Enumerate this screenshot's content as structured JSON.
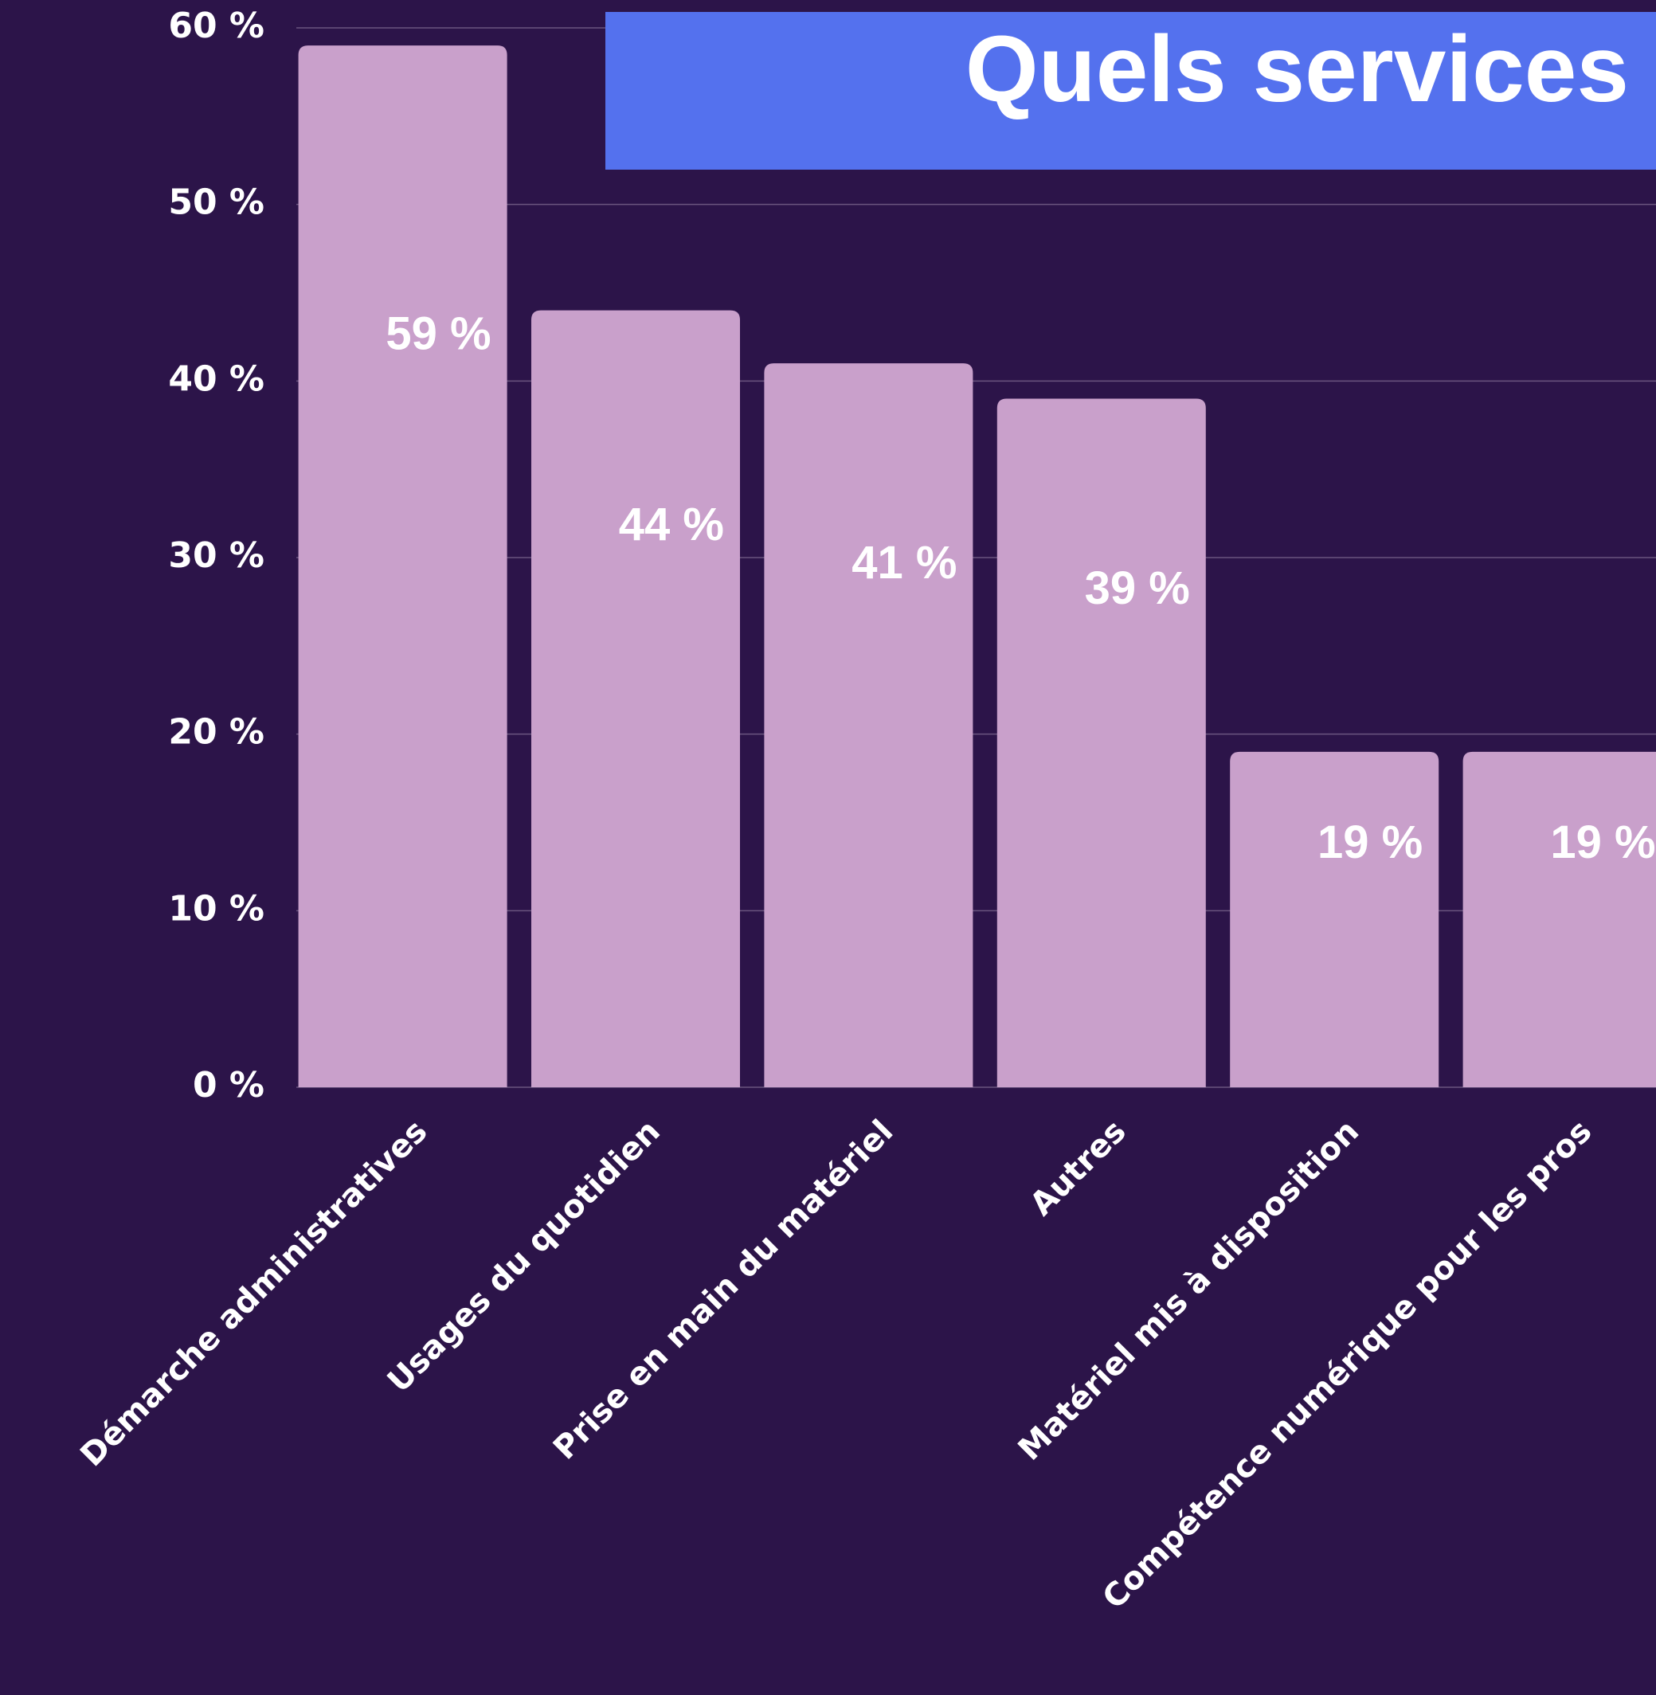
{
  "chart_data": {
    "type": "bar",
    "title": "Quels services",
    "categories": [
      "Démarche administratives",
      "Usages du quotidien",
      "Prise en main du matériel",
      "Autres",
      "Matériel mis à disposition",
      "Compétence numérique pour les pros"
    ],
    "values": [
      59,
      44,
      41,
      39,
      19,
      19
    ],
    "value_labels": [
      "59 %",
      "44 %",
      "41 %",
      "39 %",
      "19 %",
      "19 %"
    ],
    "color": "#c9a0cb",
    "title_color": "#5471ee",
    "ylim": [
      0,
      60
    ],
    "yticks": [
      {
        "value": 0,
        "label": "0 %"
      },
      {
        "value": 10,
        "label": "10 %"
      },
      {
        "value": 20,
        "label": "20 %"
      },
      {
        "value": 30,
        "label": "30 %"
      },
      {
        "value": 40,
        "label": "40 %"
      },
      {
        "value": 50,
        "label": "50 %"
      },
      {
        "value": 60,
        "label": "60 %"
      }
    ],
    "grid": true
  }
}
